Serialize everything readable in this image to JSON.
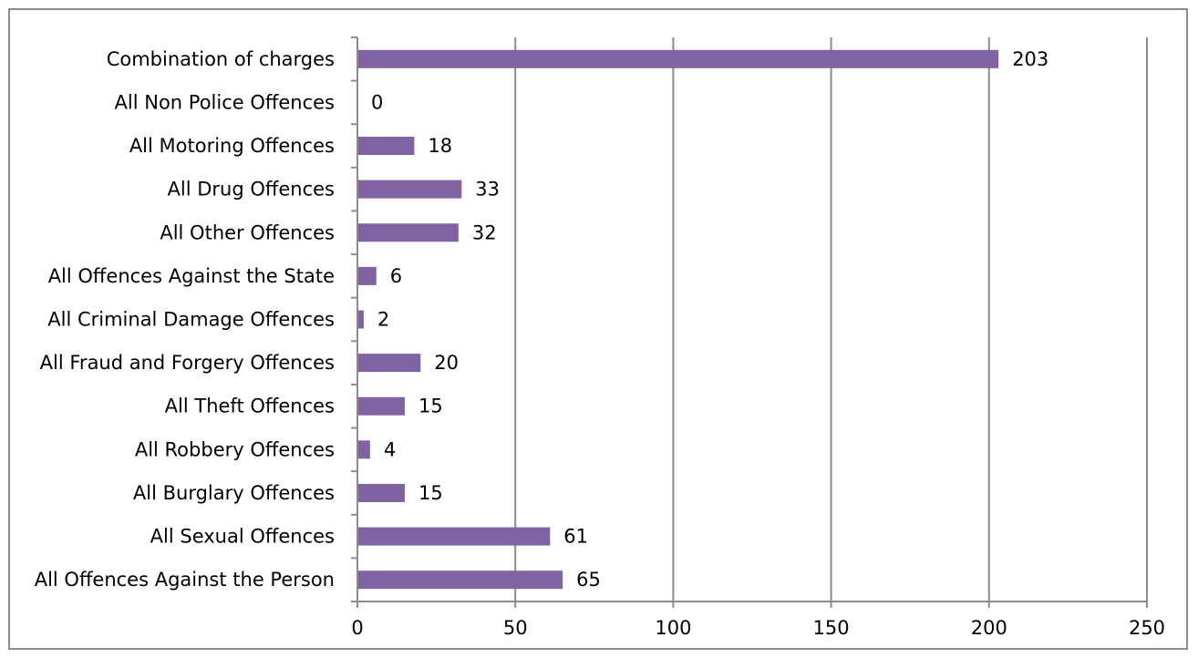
{
  "chart_data": {
    "type": "bar",
    "orientation": "horizontal",
    "categories": [
      "Combination of charges",
      "All Non Police Offences",
      "All Motoring Offences",
      "All Drug Offences",
      "All Other Offences",
      "All Offences Against the State",
      "All Criminal Damage Offences",
      "All Fraud and Forgery Offences",
      "All Theft Offences",
      "All Robbery Offences",
      "All Burglary Offences",
      "All Sexual Offences",
      "All Offences Against the Person"
    ],
    "values": [
      203,
      0,
      18,
      33,
      32,
      6,
      2,
      20,
      15,
      4,
      15,
      61,
      65
    ],
    "data_labels": [
      "203",
      "0",
      "18",
      "33",
      "32",
      "6",
      "2",
      "20",
      "15",
      "4",
      "15",
      "61",
      "65"
    ],
    "x_ticks": [
      "0",
      "50",
      "100",
      "150",
      "200",
      "250"
    ],
    "xlim": [
      0,
      250
    ],
    "grid": "vertical major gridlines",
    "legend": "none",
    "bar_color": "#8064a2"
  }
}
